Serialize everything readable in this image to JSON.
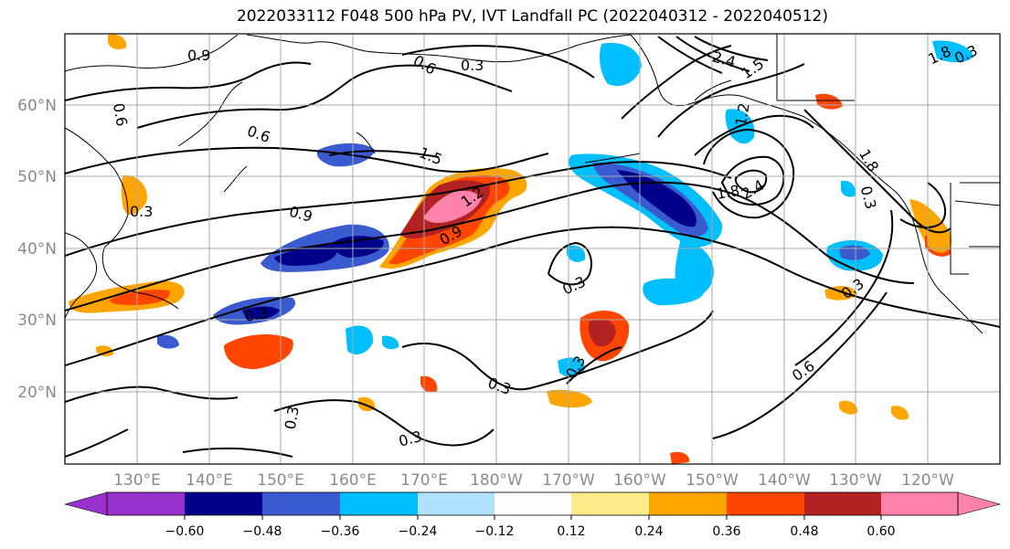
{
  "title": "2022033112 F048 500 hPa PV, IVT Landfall PC (2022040312 - 2022040512)",
  "lat_labels": [
    "60°N",
    "50°N",
    "40°N",
    "30°N",
    "20°N"
  ],
  "lon_labels": [
    "130°E",
    "140°E",
    "150°E",
    "160°E",
    "170°E",
    "180°W",
    "170°W",
    "160°W",
    "150°W",
    "140°W",
    "130°W",
    "120°W"
  ],
  "contour_labels": [
    "0.9",
    "0.6",
    "0.3",
    "0.9",
    "0.6",
    "1.5",
    "1.2",
    "0.9",
    "0.6",
    "0.3",
    "2.4",
    "1.5",
    "1.8",
    "2.4",
    "1.8",
    "0.3",
    "0.3",
    "0.3",
    "0.3",
    "0.6",
    "0.3",
    "0.3",
    "0.3",
    "0.3",
    "0.3",
    "1.8",
    "1.2"
  ],
  "colorbar": {
    "colors": [
      "#9932cc",
      "#00008b",
      "#3a5bcf",
      "#00bfff",
      "#b0e2ff",
      "#ffffff",
      "#ffeb8a",
      "#ffa500",
      "#ff4500",
      "#b22222",
      "#ff82ab",
      "#ff82ab"
    ],
    "tick_labels": [
      "−0.60",
      "−0.48",
      "−0.36",
      "−0.24",
      "−0.12",
      "0.12",
      "0.24",
      "0.36",
      "0.48",
      "0.60"
    ]
  }
}
